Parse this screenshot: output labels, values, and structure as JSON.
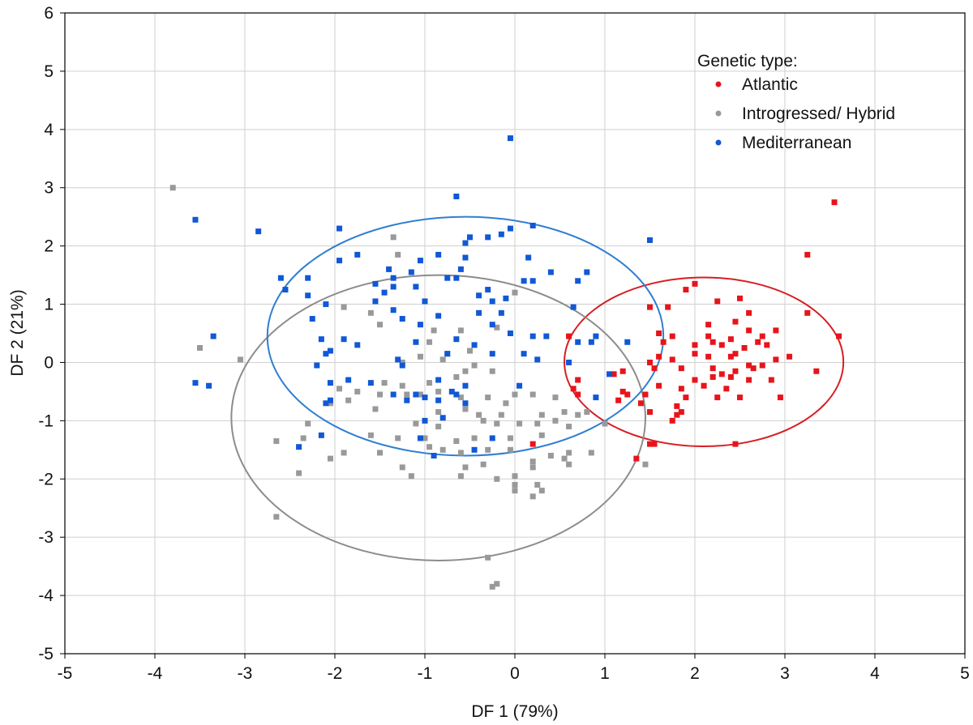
{
  "chart_data": {
    "type": "scatter",
    "xlabel": "DF 1 (79%)",
    "ylabel": "DF 2 (21%)",
    "xlim": [
      -5,
      5
    ],
    "ylim": [
      -5,
      6
    ],
    "x_ticks": [
      -5,
      -4,
      -3,
      -2,
      -1,
      0,
      1,
      2,
      3,
      4,
      5
    ],
    "y_ticks": [
      -5,
      -4,
      -3,
      -2,
      -1,
      0,
      1,
      2,
      3,
      4,
      5,
      6
    ],
    "grid": true,
    "legend_title": "Genetic type:",
    "legend_position": "top-right",
    "series": [
      {
        "name": "Atlantic",
        "color": "#e8141b",
        "ellipse": {
          "cx": 2.1,
          "cy": 0.01,
          "rx": 1.55,
          "ry": 1.45
        },
        "points": [
          [
            3.55,
            2.75
          ],
          [
            3.25,
            1.85
          ],
          [
            1.9,
            1.25
          ],
          [
            2.0,
            1.35
          ],
          [
            2.25,
            1.05
          ],
          [
            2.5,
            1.1
          ],
          [
            1.7,
            0.95
          ],
          [
            1.5,
            0.95
          ],
          [
            2.6,
            0.85
          ],
          [
            3.25,
            0.85
          ],
          [
            2.45,
            0.7
          ],
          [
            2.15,
            0.65
          ],
          [
            2.6,
            0.55
          ],
          [
            2.9,
            0.55
          ],
          [
            2.75,
            0.45
          ],
          [
            1.6,
            0.5
          ],
          [
            1.75,
            0.45
          ],
          [
            2.15,
            0.45
          ],
          [
            2.4,
            0.4
          ],
          [
            3.6,
            0.45
          ],
          [
            2.2,
            0.35
          ],
          [
            2.7,
            0.35
          ],
          [
            2.0,
            0.3
          ],
          [
            2.3,
            0.3
          ],
          [
            2.55,
            0.25
          ],
          [
            2.8,
            0.3
          ],
          [
            1.65,
            0.35
          ],
          [
            0.6,
            0.45
          ],
          [
            2.45,
            0.15
          ],
          [
            2.0,
            0.15
          ],
          [
            2.15,
            0.1
          ],
          [
            2.4,
            0.1
          ],
          [
            2.9,
            0.05
          ],
          [
            2.6,
            -0.05
          ],
          [
            2.75,
            -0.05
          ],
          [
            3.05,
            0.1
          ],
          [
            1.75,
            0.05
          ],
          [
            2.2,
            -0.1
          ],
          [
            2.45,
            -0.15
          ],
          [
            2.65,
            -0.1
          ],
          [
            2.3,
            -0.2
          ],
          [
            1.55,
            -0.1
          ],
          [
            1.85,
            -0.1
          ],
          [
            3.35,
            -0.15
          ],
          [
            2.6,
            -0.3
          ],
          [
            2.85,
            -0.3
          ],
          [
            2.2,
            -0.25
          ],
          [
            2.4,
            -0.25
          ],
          [
            2.0,
            -0.3
          ],
          [
            2.1,
            -0.4
          ],
          [
            1.6,
            -0.4
          ],
          [
            1.85,
            -0.45
          ],
          [
            2.35,
            -0.45
          ],
          [
            1.2,
            -0.15
          ],
          [
            1.5,
            0.0
          ],
          [
            1.6,
            0.1
          ],
          [
            1.1,
            -0.2
          ],
          [
            0.7,
            -0.3
          ],
          [
            0.65,
            -0.45
          ],
          [
            1.2,
            -0.5
          ],
          [
            1.25,
            -0.55
          ],
          [
            1.45,
            -0.55
          ],
          [
            1.15,
            -0.65
          ],
          [
            0.7,
            -0.55
          ],
          [
            1.9,
            -0.6
          ],
          [
            2.5,
            -0.6
          ],
          [
            2.25,
            -0.6
          ],
          [
            1.4,
            -0.7
          ],
          [
            1.8,
            -0.75
          ],
          [
            1.5,
            -0.85
          ],
          [
            2.95,
            -0.6
          ],
          [
            1.8,
            -0.9
          ],
          [
            1.75,
            -1.0
          ],
          [
            1.5,
            -1.4
          ],
          [
            1.55,
            -1.4
          ],
          [
            2.45,
            -1.4
          ],
          [
            1.35,
            -1.65
          ],
          [
            0.2,
            -1.4
          ],
          [
            1.85,
            -0.85
          ]
        ]
      },
      {
        "name": "Introgressed/ Hybrid",
        "color": "#999999",
        "ellipse": {
          "cx": -0.85,
          "cy": -0.95,
          "rx": 2.3,
          "ry": 2.45
        },
        "points": [
          [
            -3.8,
            3.0
          ],
          [
            -1.35,
            2.15
          ],
          [
            -1.3,
            1.85
          ],
          [
            -1.9,
            0.95
          ],
          [
            -1.6,
            0.85
          ],
          [
            -0.9,
            0.55
          ],
          [
            -1.5,
            0.65
          ],
          [
            -0.6,
            0.55
          ],
          [
            -0.2,
            0.6
          ],
          [
            0.0,
            1.2
          ],
          [
            -3.05,
            0.05
          ],
          [
            -3.5,
            0.25
          ],
          [
            -0.95,
            0.35
          ],
          [
            -0.5,
            0.2
          ],
          [
            -0.75,
            0.15
          ],
          [
            -1.05,
            0.1
          ],
          [
            -1.25,
            0.0
          ],
          [
            -0.8,
            0.05
          ],
          [
            -0.45,
            -0.05
          ],
          [
            -0.55,
            -0.15
          ],
          [
            -0.25,
            -0.15
          ],
          [
            -0.65,
            -0.25
          ],
          [
            -1.45,
            -0.35
          ],
          [
            -1.25,
            -0.4
          ],
          [
            -0.95,
            -0.35
          ],
          [
            -0.85,
            -0.5
          ],
          [
            -1.75,
            -0.5
          ],
          [
            -1.95,
            -0.45
          ],
          [
            -1.5,
            -0.55
          ],
          [
            -1.2,
            -0.55
          ],
          [
            -1.05,
            -0.55
          ],
          [
            -0.6,
            -0.6
          ],
          [
            -0.3,
            -0.6
          ],
          [
            0.0,
            -0.55
          ],
          [
            0.2,
            -0.55
          ],
          [
            0.45,
            -0.6
          ],
          [
            -0.1,
            -0.7
          ],
          [
            -1.85,
            -0.65
          ],
          [
            -2.05,
            -0.7
          ],
          [
            -1.55,
            -0.8
          ],
          [
            -0.85,
            -0.85
          ],
          [
            -0.55,
            -0.8
          ],
          [
            -0.4,
            -0.9
          ],
          [
            -0.15,
            -0.9
          ],
          [
            0.3,
            -0.9
          ],
          [
            0.55,
            -0.85
          ],
          [
            0.7,
            -0.9
          ],
          [
            0.8,
            -0.85
          ],
          [
            -2.3,
            -1.05
          ],
          [
            -1.1,
            -1.05
          ],
          [
            -0.85,
            -1.1
          ],
          [
            -0.35,
            -1.0
          ],
          [
            -0.2,
            -1.05
          ],
          [
            0.05,
            -1.05
          ],
          [
            0.25,
            -1.05
          ],
          [
            0.45,
            -1.0
          ],
          [
            0.6,
            -1.1
          ],
          [
            1.0,
            -1.05
          ],
          [
            -2.35,
            -1.3
          ],
          [
            -1.6,
            -1.25
          ],
          [
            -1.3,
            -1.3
          ],
          [
            -1.0,
            -1.3
          ],
          [
            -0.65,
            -1.35
          ],
          [
            -0.45,
            -1.3
          ],
          [
            -0.05,
            -1.3
          ],
          [
            0.3,
            -1.25
          ],
          [
            -2.65,
            -1.35
          ],
          [
            -1.9,
            -1.55
          ],
          [
            -1.5,
            -1.55
          ],
          [
            -0.95,
            -1.45
          ],
          [
            -0.8,
            -1.5
          ],
          [
            -0.6,
            -1.55
          ],
          [
            -0.3,
            -1.5
          ],
          [
            -0.05,
            -1.5
          ],
          [
            0.4,
            -1.6
          ],
          [
            0.6,
            -1.55
          ],
          [
            0.85,
            -1.55
          ],
          [
            -2.05,
            -1.65
          ],
          [
            -1.25,
            -1.8
          ],
          [
            -0.55,
            -1.8
          ],
          [
            -0.35,
            -1.75
          ],
          [
            0.2,
            -1.7
          ],
          [
            0.2,
            -1.8
          ],
          [
            0.6,
            -1.75
          ],
          [
            0.55,
            -1.65
          ],
          [
            1.45,
            -1.75
          ],
          [
            -2.4,
            -1.9
          ],
          [
            -1.15,
            -1.95
          ],
          [
            -0.6,
            -1.95
          ],
          [
            0.0,
            -1.95
          ],
          [
            -0.2,
            -2.0
          ],
          [
            0.0,
            -2.1
          ],
          [
            0.25,
            -2.1
          ],
          [
            0.0,
            -2.2
          ],
          [
            0.3,
            -2.2
          ],
          [
            0.2,
            -2.3
          ],
          [
            -2.65,
            -2.65
          ],
          [
            -0.3,
            -3.35
          ],
          [
            -0.25,
            -3.85
          ],
          [
            -0.2,
            -3.8
          ]
        ]
      },
      {
        "name": "Mediterranean",
        "color": "#1058d6",
        "ellipse": {
          "cx": -0.55,
          "cy": 0.45,
          "rx": 2.2,
          "ry": 2.05
        },
        "points": [
          [
            -0.05,
            3.85
          ],
          [
            -3.55,
            2.45
          ],
          [
            -2.85,
            2.25
          ],
          [
            -1.95,
            2.3
          ],
          [
            0.2,
            2.35
          ],
          [
            -0.05,
            2.3
          ],
          [
            -0.65,
            2.85
          ],
          [
            1.5,
            2.1
          ],
          [
            -0.5,
            2.15
          ],
          [
            -0.3,
            2.15
          ],
          [
            -0.15,
            2.2
          ],
          [
            -0.55,
            2.05
          ],
          [
            -1.75,
            1.85
          ],
          [
            -0.85,
            1.85
          ],
          [
            -0.55,
            1.8
          ],
          [
            0.15,
            1.8
          ],
          [
            -1.95,
            1.75
          ],
          [
            -1.05,
            1.75
          ],
          [
            -1.4,
            1.6
          ],
          [
            -0.6,
            1.6
          ],
          [
            -0.65,
            1.45
          ],
          [
            -1.15,
            1.55
          ],
          [
            0.4,
            1.55
          ],
          [
            0.8,
            1.55
          ],
          [
            -2.6,
            1.45
          ],
          [
            -2.3,
            1.45
          ],
          [
            -1.35,
            1.45
          ],
          [
            -0.75,
            1.45
          ],
          [
            0.1,
            1.4
          ],
          [
            0.2,
            1.4
          ],
          [
            0.7,
            1.4
          ],
          [
            -1.55,
            1.35
          ],
          [
            -1.35,
            1.3
          ],
          [
            -1.1,
            1.3
          ],
          [
            -1.45,
            1.2
          ],
          [
            -0.3,
            1.25
          ],
          [
            -0.4,
            1.15
          ],
          [
            -0.25,
            1.05
          ],
          [
            -0.1,
            1.1
          ],
          [
            -2.55,
            1.25
          ],
          [
            -2.3,
            1.15
          ],
          [
            -1.55,
            1.05
          ],
          [
            -1.0,
            1.05
          ],
          [
            -2.1,
            1.0
          ],
          [
            -1.35,
            0.9
          ],
          [
            -0.4,
            0.85
          ],
          [
            0.65,
            0.95
          ],
          [
            -0.85,
            0.8
          ],
          [
            -0.15,
            0.85
          ],
          [
            -2.25,
            0.75
          ],
          [
            -1.25,
            0.75
          ],
          [
            -1.05,
            0.65
          ],
          [
            -0.25,
            0.65
          ],
          [
            0.35,
            0.45
          ],
          [
            0.2,
            0.45
          ],
          [
            -0.05,
            0.5
          ],
          [
            -0.65,
            0.4
          ],
          [
            -1.1,
            0.35
          ],
          [
            -1.75,
            0.3
          ],
          [
            -1.9,
            0.4
          ],
          [
            -2.15,
            0.4
          ],
          [
            -3.35,
            0.45
          ],
          [
            0.7,
            0.35
          ],
          [
            -0.45,
            0.3
          ],
          [
            0.85,
            0.35
          ],
          [
            0.9,
            0.45
          ],
          [
            1.25,
            0.35
          ],
          [
            -2.1,
            0.15
          ],
          [
            -2.05,
            0.2
          ],
          [
            -1.3,
            0.05
          ],
          [
            -0.75,
            0.15
          ],
          [
            -0.25,
            0.15
          ],
          [
            0.1,
            0.15
          ],
          [
            -1.25,
            -0.05
          ],
          [
            0.25,
            0.05
          ],
          [
            -2.2,
            -0.05
          ],
          [
            0.6,
            0.0
          ],
          [
            -0.85,
            -0.3
          ],
          [
            -0.55,
            -0.4
          ],
          [
            -0.7,
            -0.5
          ],
          [
            -1.85,
            -0.3
          ],
          [
            -1.6,
            -0.35
          ],
          [
            -1.35,
            -0.55
          ],
          [
            -1.1,
            -0.55
          ],
          [
            -1.2,
            -0.65
          ],
          [
            -2.05,
            -0.35
          ],
          [
            -1.0,
            -0.6
          ],
          [
            -0.65,
            -0.55
          ],
          [
            -0.85,
            -0.65
          ],
          [
            -0.55,
            -0.7
          ],
          [
            0.05,
            -0.4
          ],
          [
            1.05,
            -0.2
          ],
          [
            0.9,
            -0.6
          ],
          [
            -2.05,
            -0.65
          ],
          [
            -2.1,
            -0.7
          ],
          [
            -3.55,
            -0.35
          ],
          [
            -3.4,
            -0.4
          ],
          [
            -0.8,
            -0.95
          ],
          [
            -1.0,
            -1.0
          ],
          [
            -1.05,
            -1.3
          ],
          [
            -0.25,
            -1.3
          ],
          [
            -2.15,
            -1.25
          ],
          [
            -2.4,
            -1.45
          ],
          [
            -0.45,
            -1.5
          ],
          [
            -0.9,
            -1.6
          ]
        ]
      }
    ]
  }
}
